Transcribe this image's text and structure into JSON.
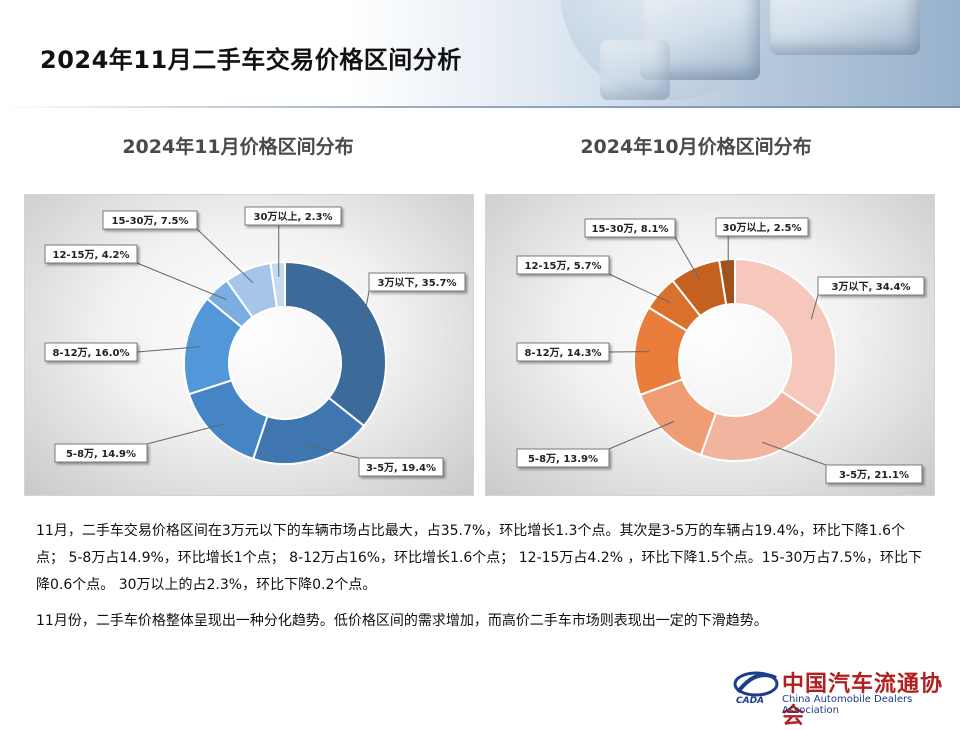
{
  "page": {
    "title": "2024年11月二手车交易价格区间分析"
  },
  "chart_data": [
    {
      "type": "pie",
      "variant": "donut",
      "title": "2024年11月价格区间分布",
      "categories": [
        "3万以下",
        "3-5万",
        "5-8万",
        "8-12万",
        "12-15万",
        "15-30万",
        "30万以上"
      ],
      "values": [
        35.7,
        19.4,
        14.9,
        16.0,
        4.2,
        7.5,
        2.3
      ],
      "data_labels": [
        "3万以下, 35.7%",
        "3-5万, 19.4%",
        "5-8万, 14.9%",
        "8-12万, 16.0%",
        "12-15万, 4.2%",
        "15-30万, 7.5%",
        "30万以上, 2.3%"
      ],
      "colors": [
        "#3c6a99",
        "#3f76b0",
        "#4584c5",
        "#5297d8",
        "#7aaee0",
        "#a6c6e9",
        "#c5d9ef"
      ],
      "legend": "none"
    },
    {
      "type": "pie",
      "variant": "donut",
      "title": "2024年10月价格区间分布",
      "categories": [
        "3万以下",
        "3-5万",
        "5-8万",
        "8-12万",
        "12-15万",
        "15-30万",
        "30万以上"
      ],
      "values": [
        34.4,
        21.1,
        13.9,
        14.3,
        5.7,
        8.1,
        2.5
      ],
      "data_labels": [
        "3万以下, 34.4%",
        "3-5万, 21.1%",
        "5-8万, 13.9%",
        "8-12万, 14.3%",
        "12-15万, 5.7%",
        "15-30万, 8.1%",
        "30万以上, 2.5%"
      ],
      "colors": [
        "#f6c8bb",
        "#f1b49e",
        "#ee9d74",
        "#e97d3c",
        "#d9702c",
        "#c4611f",
        "#a4501a"
      ],
      "legend": "none"
    }
  ],
  "body": {
    "paragraph1": "11月，二手车交易价格区间在3万元以下的车辆市场占比最大，占35.7%，环比增长1.3个点。其次是3-5万的车辆占19.4%，环比下降1.6个点；  5-8万占14.9%，环比增长1个点；  8-12万占16%，环比增长1.6个点；  12-15万占4.2% ，环比下降1.5个点。15-30万占7.5%，环比下降0.6个点。 30万以上的占2.3%，环比下降0.2个点。",
    "paragraph2": "11月份，二手车价格整体呈现出一种分化趋势。低价格区间的需求增加，而高价二手车市场则表现出一定的下滑趋势。"
  },
  "logo": {
    "name_cn": "中国汽车流通协会",
    "name_en": "China Automobile Dealers Association",
    "abbr": "CADA"
  }
}
